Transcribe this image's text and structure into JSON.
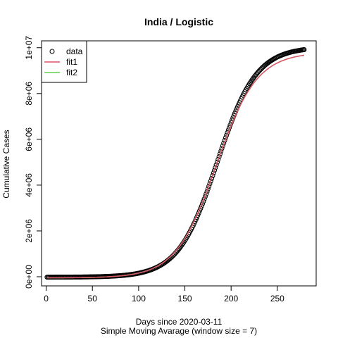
{
  "chart_data": {
    "type": "scatter",
    "title": "India / Logistic",
    "xlabel": "Days since 2020-03-11",
    "xlabel_sub": "Simple Moving Avarage (window size = 7)",
    "ylabel": "Cumulative Cases",
    "xlim": [
      -5,
      292
    ],
    "ylim": [
      -400000,
      10300000
    ],
    "x_ticks": [
      0,
      50,
      100,
      150,
      200,
      250
    ],
    "x_tick_labels": [
      "0",
      "50",
      "100",
      "150",
      "200",
      "250"
    ],
    "y_ticks": [
      0,
      2000000,
      4000000,
      6000000,
      8000000,
      10000000
    ],
    "y_tick_labels": [
      "0e+00",
      "2e+06",
      "4e+06",
      "6e+06",
      "8e+06",
      "1e+07"
    ],
    "grid": false,
    "legend_position": "top-left",
    "series": [
      {
        "name": "data",
        "style": "points",
        "color": "#000000",
        "x_range": [
          1,
          279
        ],
        "x_step": 1,
        "model": "logistic",
        "params": {
          "K": 10050000,
          "r": 0.0475,
          "t0": 185,
          "offset": -20000
        }
      },
      {
        "name": "fit1",
        "style": "line",
        "color": "#DF536B",
        "x_range": [
          1,
          279
        ],
        "model": "logistic",
        "params": {
          "K": 9850000,
          "r": 0.0455,
          "t0": 184,
          "offset": -50000
        }
      },
      {
        "name": "fit2",
        "style": "line",
        "color": "#61D04F",
        "x_range": [
          1,
          279
        ],
        "model": "logistic",
        "params": {
          "K": 9850000,
          "r": 0.0455,
          "t0": 184,
          "offset": -50000
        }
      }
    ]
  }
}
